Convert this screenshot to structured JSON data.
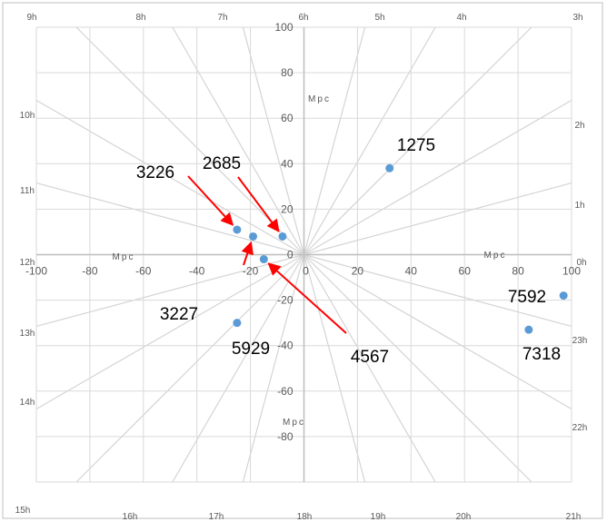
{
  "colors": {
    "frame": "#bfbfbf",
    "grid": "#d9d9d9",
    "radial": "#d4d4d4",
    "axis": "#bfbfbf",
    "point": "#5b9bd5",
    "arrow": "#ff0000",
    "text": "#000000",
    "tick_text": "#595959"
  },
  "chart_data": {
    "type": "scatter",
    "title": "",
    "xlabel": "Mpc",
    "ylabel": "Mpc",
    "xlim": [
      -100,
      100
    ],
    "ylim": [
      -100,
      100
    ],
    "x_ticks": [
      -100,
      -80,
      -60,
      -40,
      -20,
      0,
      20,
      40,
      60,
      80,
      100
    ],
    "y_ticks": [
      100,
      80,
      60,
      40,
      20,
      0,
      -20,
      -40,
      -60,
      -80
    ],
    "grid": true,
    "unit_labels": [
      "Mpc",
      "Mpc",
      "Mpc",
      "Mpc"
    ],
    "hour_labels": [
      "0h",
      "1h",
      "2h",
      "3h",
      "4h",
      "5h",
      "6h",
      "7h",
      "8h",
      "9h",
      "10h",
      "11h",
      "12h",
      "13h",
      "14h",
      "15h",
      "16h",
      "17h",
      "18h",
      "19h",
      "20h",
      "21h",
      "22h",
      "23h"
    ],
    "points": [
      {
        "label": "1275",
        "x": 32,
        "y": 38
      },
      {
        "label": "2685",
        "x": -8,
        "y": 8
      },
      {
        "label": "3226",
        "x": -25,
        "y": 11
      },
      {
        "label": "3227",
        "x": -19,
        "y": 8
      },
      {
        "label": "4567",
        "x": -15,
        "y": -2
      },
      {
        "label": "5929",
        "x": -25,
        "y": -30
      },
      {
        "label": "7318",
        "x": 84,
        "y": -33
      },
      {
        "label": "7592",
        "x": 97,
        "y": -18
      }
    ],
    "arrows": [
      {
        "from_label": "3226",
        "to": "3226"
      },
      {
        "from_label": "2685",
        "to": "2685"
      },
      {
        "from_label": "3227",
        "to": "3227"
      },
      {
        "from_label": "4567",
        "to": "4567"
      }
    ]
  }
}
